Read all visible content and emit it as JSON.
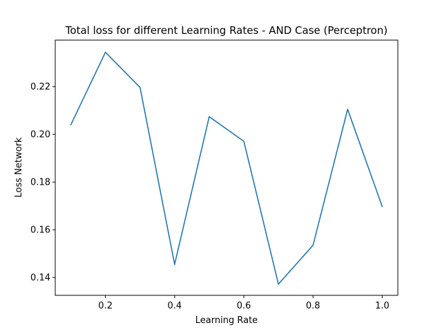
{
  "chart_data": {
    "type": "line",
    "title": "Total loss for different Learning Rates - AND Case (Perceptron)",
    "xlabel": "Learning Rate",
    "ylabel": "Loss Network",
    "grid": false,
    "legend": "none",
    "xlim": [
      0.055,
      1.045
    ],
    "ylim": [
      0.1325,
      0.2395
    ],
    "xticks": [
      0.2,
      0.4,
      0.6,
      0.8,
      1.0
    ],
    "xtick_labels": [
      "0.2",
      "0.4",
      "0.6",
      "0.8",
      "1.0"
    ],
    "yticks": [
      0.14,
      0.16,
      0.18,
      0.2,
      0.22
    ],
    "ytick_labels": [
      "0.14",
      "0.16",
      "0.18",
      "0.20",
      "0.22"
    ],
    "series": [
      {
        "color": "#1f77b4",
        "x": [
          0.1,
          0.2,
          0.3,
          0.4,
          0.5,
          0.6,
          0.7,
          0.8,
          0.9,
          1.0
        ],
        "y": [
          0.204,
          0.2344,
          0.2197,
          0.1455,
          0.2074,
          0.1971,
          0.1372,
          0.1535,
          0.2105,
          0.1697
        ]
      }
    ]
  }
}
